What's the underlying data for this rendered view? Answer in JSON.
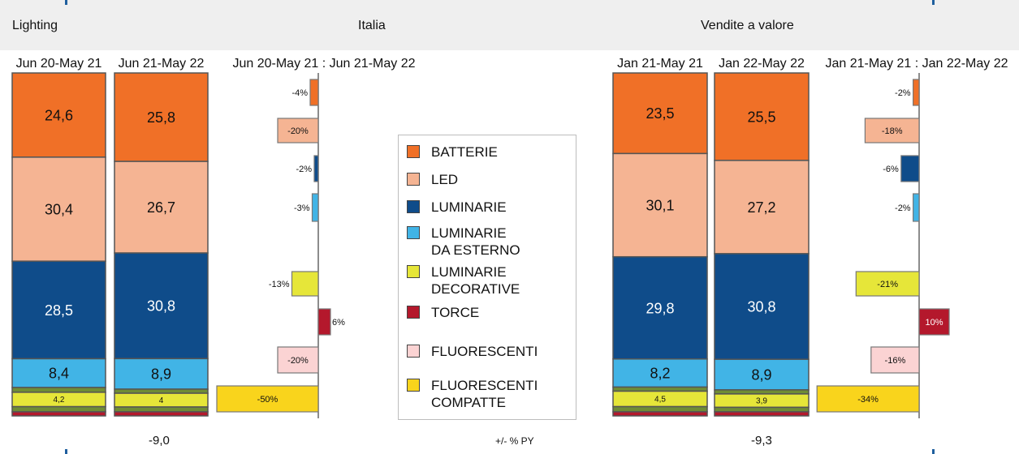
{
  "header": {
    "left": "Lighting",
    "center": "Italia",
    "right": "Vendite a valore"
  },
  "footer": {
    "left_total": "-9,0",
    "center": "+/- % PY",
    "right_total": "-9,3"
  },
  "colors": {
    "batterie": "#f07027",
    "led": "#f5b493",
    "luminarie": "#0f4c8a",
    "luminarie_esterno": "#41b4e6",
    "luminarie_decorative": "#e6e639",
    "torce": "#b4182c",
    "fluorescenti": "#fbd3d3",
    "fluorescenti_compatte": "#f9d41c",
    "olive_segment": "#6f8c35"
  },
  "legend": [
    {
      "key": "batterie",
      "label": "BATTERIE"
    },
    {
      "key": "led",
      "label": "LED"
    },
    {
      "key": "luminarie",
      "label": "LUMINARIE"
    },
    {
      "key": "luminarie_esterno",
      "label": "LUMINARIE\nDA ESTERNO"
    },
    {
      "key": "luminarie_decorative",
      "label": "LUMINARIE\nDECORATIVE"
    },
    {
      "key": "torce",
      "label": "TORCE"
    },
    {
      "key": "fluorescenti",
      "label": "FLUORESCENTI"
    },
    {
      "key": "fluorescenti_compatte",
      "label": "FLUORESCENTI\nCOMPATTE"
    }
  ],
  "chart_data": [
    {
      "type": "bar",
      "subtype": "stacked-100",
      "panel": "left",
      "categories": [
        "Jun 20-May 21",
        "Jun 21-May 22"
      ],
      "series": [
        {
          "name": "BATTERIE",
          "values": [
            24.6,
            25.8
          ],
          "labels": [
            "24,6",
            "25,8"
          ]
        },
        {
          "name": "LED",
          "values": [
            30.4,
            26.7
          ],
          "labels": [
            "30,4",
            "26,7"
          ]
        },
        {
          "name": "LUMINARIE",
          "values": [
            28.5,
            30.8
          ],
          "labels": [
            "28,5",
            "30,8"
          ]
        },
        {
          "name": "LUMINARIE DA ESTERNO",
          "values": [
            8.4,
            8.9
          ],
          "labels": [
            "8,4",
            "8,9"
          ]
        },
        {
          "name": "LUMINARIE DECORATIVE",
          "values": [
            1.4,
            1.2
          ],
          "labels": [
            "",
            ""
          ]
        },
        {
          "name": "FLUORESCENTI COMPATTE",
          "values": [
            4.2,
            4.0
          ],
          "labels": [
            "4,2",
            "4"
          ]
        },
        {
          "name": "FLUORESCENTI",
          "values": [
            1.5,
            1.4
          ],
          "labels": [
            "",
            ""
          ]
        },
        {
          "name": "TORCE",
          "values": [
            1.2,
            1.2
          ],
          "labels": [
            "",
            ""
          ]
        }
      ]
    },
    {
      "type": "bar",
      "subtype": "horizontal-change",
      "panel": "left",
      "title": "Jun 20-May 21 : Jun 21-May 22",
      "categories": [
        "BATTERIE",
        "LED",
        "LUMINARIE",
        "LUMINARIE DA ESTERNO",
        "LUMINARIE DECORATIVE",
        "TORCE",
        "FLUORESCENTI",
        "FLUORESCENTI COMPATTE"
      ],
      "values": [
        -4,
        -20,
        -2,
        -3,
        -13,
        6,
        -20,
        -50
      ],
      "labels": [
        "-4%",
        "-20%",
        "-2%",
        "-3%",
        "-13%",
        "6%",
        "-20%",
        "-50%"
      ]
    },
    {
      "type": "bar",
      "subtype": "stacked-100",
      "panel": "right",
      "categories": [
        "Jan 21-May 21",
        "Jan 22-May 22"
      ],
      "series": [
        {
          "name": "BATTERIE",
          "values": [
            23.5,
            25.5
          ],
          "labels": [
            "23,5",
            "25,5"
          ]
        },
        {
          "name": "LED",
          "values": [
            30.1,
            27.2
          ],
          "labels": [
            "30,1",
            "27,2"
          ]
        },
        {
          "name": "LUMINARIE",
          "values": [
            29.8,
            30.8
          ],
          "labels": [
            "29,8",
            "30,8"
          ]
        },
        {
          "name": "LUMINARIE DA ESTERNO",
          "values": [
            8.2,
            8.9
          ],
          "labels": [
            "8,2",
            "8,9"
          ]
        },
        {
          "name": "LUMINARIE DECORATIVE",
          "values": [
            1.2,
            1.2
          ],
          "labels": [
            "",
            ""
          ]
        },
        {
          "name": "FLUORESCENTI COMPATTE",
          "values": [
            4.5,
            3.9
          ],
          "labels": [
            "4,5",
            "3,9"
          ]
        },
        {
          "name": "FLUORESCENTI",
          "values": [
            1.5,
            1.3
          ],
          "labels": [
            "",
            ""
          ]
        },
        {
          "name": "TORCE",
          "values": [
            1.2,
            1.2
          ],
          "labels": [
            "",
            ""
          ]
        }
      ]
    },
    {
      "type": "bar",
      "subtype": "horizontal-change",
      "panel": "right",
      "title": "Jan 21-May 21 : Jan 22-May 22",
      "categories": [
        "BATTERIE",
        "LED",
        "LUMINARIE",
        "LUMINARIE DA ESTERNO",
        "LUMINARIE DECORATIVE",
        "TORCE",
        "FLUORESCENTI",
        "FLUORESCENTI COMPATTE"
      ],
      "values": [
        -2,
        -18,
        -6,
        -2,
        -21,
        10,
        -16,
        -34
      ],
      "labels": [
        "-2%",
        "-18%",
        "-6%",
        "-2%",
        "-21%",
        "10%",
        "-16%",
        "-34%"
      ]
    }
  ]
}
